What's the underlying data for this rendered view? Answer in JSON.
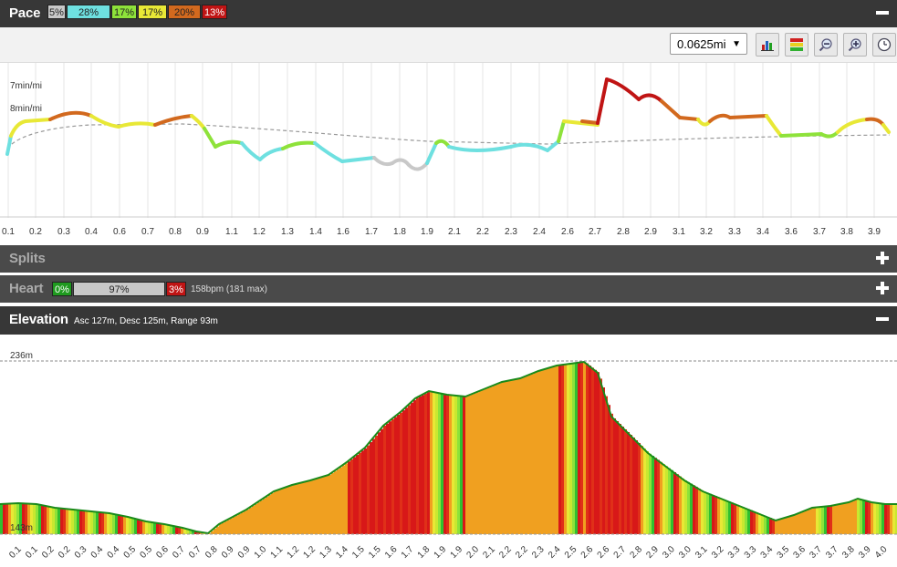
{
  "pace": {
    "title": "Pace",
    "zones": [
      {
        "label": "5%",
        "color": "#c8c8c8"
      },
      {
        "label": "28%",
        "color": "#6ee0e0"
      },
      {
        "label": "17%",
        "color": "#8ee23a"
      },
      {
        "label": "17%",
        "color": "#e8e836"
      },
      {
        "label": "20%",
        "color": "#d2691e"
      },
      {
        "label": "13%",
        "color": "#c01414"
      }
    ],
    "toolbar": {
      "distance_select": "0.0625mi",
      "buttons": [
        "bar-chart-icon",
        "color-scale-icon",
        "zoom-out-icon",
        "zoom-in-icon",
        "clock-icon"
      ]
    },
    "y_labels": [
      "7min/mi",
      "8min/mi"
    ],
    "x_labels": [
      "0.1",
      "0.2",
      "0.3",
      "0.4",
      "0.6",
      "0.7",
      "0.8",
      "0.9",
      "1.1",
      "1.2",
      "1.3",
      "1.4",
      "1.6",
      "1.7",
      "1.8",
      "1.9",
      "2.1",
      "2.2",
      "2.3",
      "2.4",
      "2.6",
      "2.7",
      "2.8",
      "2.9",
      "3.1",
      "3.2",
      "3.3",
      "3.4",
      "3.6",
      "3.7",
      "3.8",
      "3.9"
    ]
  },
  "splits": {
    "title": "Splits"
  },
  "heart": {
    "title": "Heart",
    "zones": [
      {
        "label": "0%",
        "color": "#1f9a1f"
      },
      {
        "label": "97%",
        "color": "#c8c8c8"
      },
      {
        "label": "3%",
        "color": "#c01414"
      }
    ],
    "summary": "158bpm (181 max)"
  },
  "elevation": {
    "title": "Elevation",
    "summary": "Asc 127m, Desc 125m, Range 93m",
    "max_label": "236m",
    "min_label": "143m",
    "x_labels": [
      "0.1",
      "0.1",
      "0.2",
      "0.2",
      "0.3",
      "0.4",
      "0.4",
      "0.5",
      "0.5",
      "0.6",
      "0.7",
      "0.7",
      "0.8",
      "0.9",
      "0.9",
      "1.0",
      "1.1",
      "1.2",
      "1.2",
      "1.3",
      "1.4",
      "1.5",
      "1.5",
      "1.6",
      "1.7",
      "1.8",
      "1.9",
      "1.9",
      "2.0",
      "2.1",
      "2.2",
      "2.2",
      "2.3",
      "2.4",
      "2.5",
      "2.6",
      "2.6",
      "2.7",
      "2.8",
      "2.9",
      "3.0",
      "3.0",
      "3.1",
      "3.2",
      "3.3",
      "3.3",
      "3.4",
      "3.5",
      "3.6",
      "3.7",
      "3.7",
      "3.8",
      "3.9",
      "4.0"
    ]
  }
}
